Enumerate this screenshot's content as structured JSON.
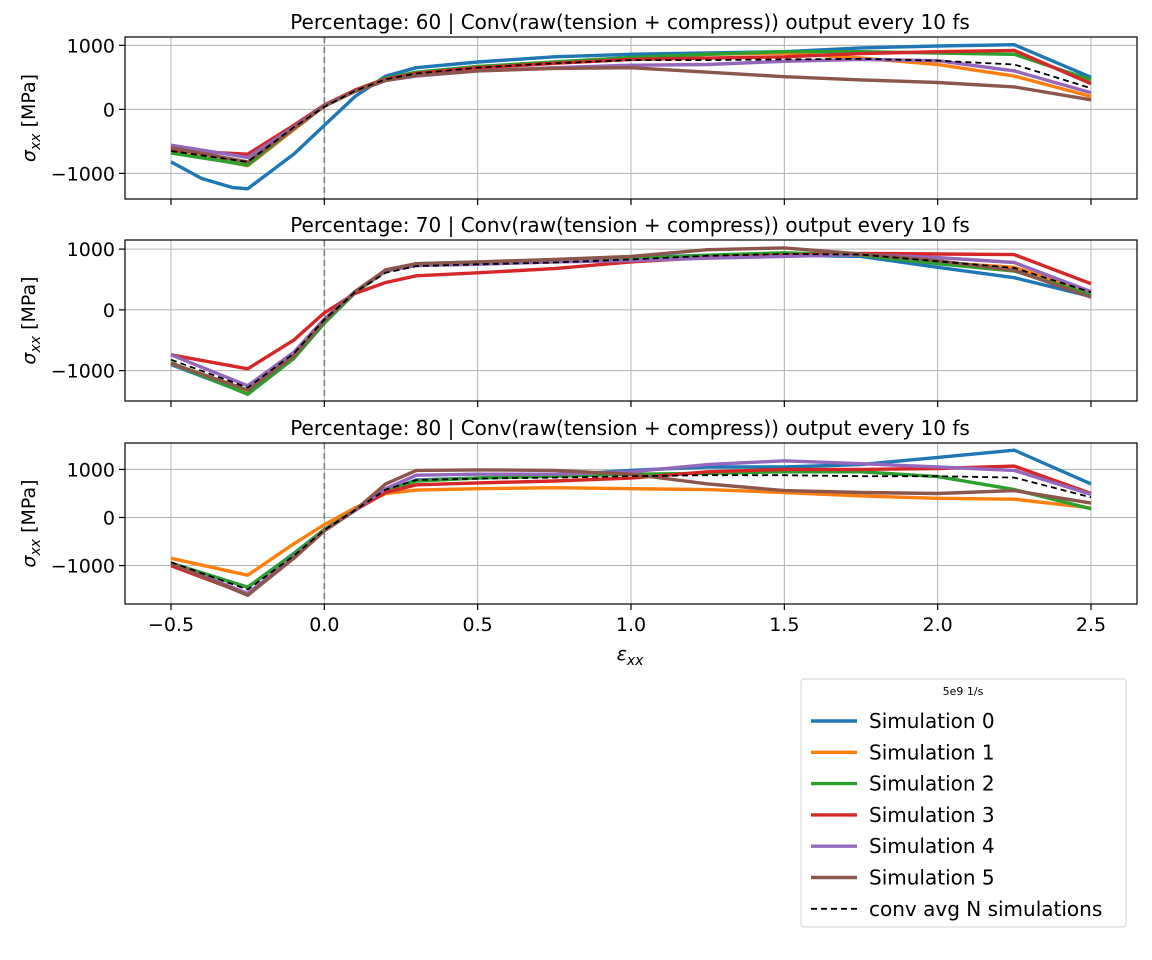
{
  "chart_data": {
    "type": "line",
    "shared_x": {
      "label_symbol": "ε",
      "label_sub": "xx",
      "xlim": [
        -0.65,
        2.65
      ],
      "ticks": [
        -0.5,
        0.0,
        0.5,
        1.0,
        1.5,
        2.0,
        2.5
      ],
      "tick_labels": [
        "−0.5",
        "0.0",
        "0.5",
        "1.0",
        "1.5",
        "2.0",
        "2.5"
      ]
    },
    "vline_x": 0.0,
    "legend": {
      "title": "5e9 1/s",
      "placement": "bottom-right",
      "entries": [
        {
          "label": "Simulation 0",
          "color": "#1f77b4",
          "style": "solid"
        },
        {
          "label": "Simulation 1",
          "color": "#ff7f0e",
          "style": "solid"
        },
        {
          "label": "Simulation 2",
          "color": "#2ca02c",
          "style": "solid"
        },
        {
          "label": "Simulation 3",
          "color": "#d62728",
          "style": "solid"
        },
        {
          "label": "Simulation 4",
          "color": "#9467bd",
          "style": "solid"
        },
        {
          "label": "Simulation 5",
          "color": "#8c564b",
          "style": "solid"
        },
        {
          "label": "conv avg N simulations",
          "color": "#000000",
          "style": "dashed"
        }
      ]
    },
    "panels": [
      {
        "title": "Percentage: 60 | Conv(raw(tension + compress)) output every 10 fs",
        "ylabel_symbol": "σ",
        "ylabel_sub": "xx",
        "ylabel_unit": " [MPa]",
        "ylim": [
          -1400,
          1130
        ],
        "yticks": [
          -1000,
          0,
          1000
        ],
        "ytick_labels": [
          "−1000",
          "0",
          "1000"
        ],
        "series": [
          {
            "x": [
              -0.5,
              -0.4,
              -0.3,
              -0.25,
              -0.1,
              0.0,
              0.1,
              0.2,
              0.3,
              0.5,
              0.75,
              1.0,
              1.25,
              1.5,
              1.75,
              2.0,
              2.25,
              2.5
            ],
            "y": [
              -820,
              -1080,
              -1220,
              -1240,
              -700,
              -250,
              200,
              520,
              650,
              740,
              820,
              860,
              880,
              900,
              960,
              990,
              1010,
              500
            ]
          },
          {
            "x": [
              -0.5,
              -0.25,
              -0.1,
              0.0,
              0.1,
              0.2,
              0.3,
              0.5,
              0.75,
              1.0,
              1.25,
              1.5,
              1.75,
              2.0,
              2.25,
              2.5
            ],
            "y": [
              -650,
              -880,
              -320,
              50,
              300,
              480,
              560,
              640,
              720,
              800,
              860,
              880,
              800,
              700,
              520,
              200
            ]
          },
          {
            "x": [
              -0.5,
              -0.25,
              -0.1,
              0.0,
              0.1,
              0.2,
              0.3,
              0.5,
              0.75,
              1.0,
              1.25,
              1.5,
              1.75,
              2.0,
              2.25,
              2.5
            ],
            "y": [
              -680,
              -870,
              -300,
              50,
              300,
              480,
              580,
              670,
              740,
              810,
              860,
              900,
              900,
              880,
              860,
              460
            ]
          },
          {
            "x": [
              -0.5,
              -0.25,
              -0.1,
              0.0,
              0.1,
              0.2,
              0.3,
              0.5,
              0.75,
              1.0,
              1.25,
              1.5,
              1.75,
              2.0,
              2.25,
              2.5
            ],
            "y": [
              -640,
              -700,
              -250,
              70,
              300,
              470,
              560,
              650,
              720,
              780,
              800,
              820,
              870,
              900,
              920,
              400
            ]
          },
          {
            "x": [
              -0.5,
              -0.25,
              -0.1,
              0.0,
              0.1,
              0.2,
              0.3,
              0.5,
              0.75,
              1.0,
              1.25,
              1.5,
              1.75,
              2.0,
              2.25,
              2.5
            ],
            "y": [
              -560,
              -750,
              -280,
              60,
              280,
              450,
              520,
              600,
              650,
              690,
              700,
              750,
              780,
              760,
              600,
              260
            ]
          },
          {
            "x": [
              -0.5,
              -0.25,
              -0.1,
              0.0,
              0.1,
              0.2,
              0.3,
              0.5,
              0.75,
              1.0,
              1.25,
              1.5,
              1.75,
              2.0,
              2.25,
              2.5
            ],
            "y": [
              -600,
              -820,
              -300,
              50,
              280,
              450,
              530,
              600,
              640,
              650,
              580,
              510,
              460,
              420,
              350,
              150
            ]
          },
          {
            "x": [
              -0.5,
              -0.25,
              -0.1,
              0.0,
              0.1,
              0.2,
              0.3,
              0.5,
              0.75,
              1.0,
              1.25,
              1.5,
              1.75,
              2.0,
              2.25,
              2.5
            ],
            "y": [
              -650,
              -820,
              -280,
              40,
              290,
              470,
              560,
              650,
              720,
              770,
              770,
              780,
              790,
              760,
              700,
              330
            ]
          }
        ]
      },
      {
        "title": "Percentage: 70 | Conv(raw(tension + compress)) output every 10 fs",
        "ylabel_symbol": "σ",
        "ylabel_sub": "xx",
        "ylabel_unit": " [MPa]",
        "ylim": [
          -1500,
          1150
        ],
        "yticks": [
          -1000,
          0,
          1000
        ],
        "ytick_labels": [
          "−1000",
          "0",
          "1000"
        ],
        "series": [
          {
            "x": [
              -0.5,
              -0.25,
              -0.1,
              0.0,
              0.1,
              0.2,
              0.3,
              0.5,
              0.75,
              1.0,
              1.25,
              1.5,
              1.75,
              2.0,
              2.25,
              2.5
            ],
            "y": [
              -900,
              -1380,
              -800,
              -200,
              300,
              650,
              760,
              790,
              800,
              860,
              900,
              900,
              880,
              700,
              530,
              220
            ]
          },
          {
            "x": [
              -0.5,
              -0.25,
              -0.1,
              0.0,
              0.1,
              0.2,
              0.3,
              0.5,
              0.75,
              1.0,
              1.25,
              1.5,
              1.75,
              2.0,
              2.25,
              2.5
            ],
            "y": [
              -880,
              -1360,
              -780,
              -200,
              300,
              640,
              730,
              760,
              790,
              840,
              880,
              920,
              900,
              780,
              700,
              300
            ]
          },
          {
            "x": [
              -0.5,
              -0.25,
              -0.1,
              0.0,
              0.1,
              0.2,
              0.3,
              0.5,
              0.75,
              1.0,
              1.25,
              1.5,
              1.75,
              2.0,
              2.25,
              2.5
            ],
            "y": [
              -870,
              -1390,
              -800,
              -220,
              280,
              640,
              740,
              770,
              800,
              840,
              900,
              940,
              900,
              760,
              640,
              250
            ]
          },
          {
            "x": [
              -0.5,
              -0.25,
              -0.1,
              0.0,
              0.1,
              0.2,
              0.3,
              0.5,
              0.75,
              1.0,
              1.25,
              1.5,
              1.75,
              2.0,
              2.25,
              2.5
            ],
            "y": [
              -740,
              -970,
              -500,
              -50,
              270,
              450,
              560,
              610,
              680,
              790,
              860,
              900,
              930,
              920,
              910,
              430
            ]
          },
          {
            "x": [
              -0.5,
              -0.25,
              -0.1,
              0.0,
              0.1,
              0.2,
              0.3,
              0.5,
              0.75,
              1.0,
              1.25,
              1.5,
              1.75,
              2.0,
              2.25,
              2.5
            ],
            "y": [
              -740,
              -1250,
              -700,
              -150,
              300,
              640,
              730,
              750,
              790,
              810,
              850,
              880,
              910,
              860,
              780,
              300
            ]
          },
          {
            "x": [
              -0.5,
              -0.25,
              -0.1,
              0.0,
              0.1,
              0.2,
              0.3,
              0.5,
              0.75,
              1.0,
              1.25,
              1.5,
              1.75,
              2.0,
              2.25,
              2.5
            ],
            "y": [
              -880,
              -1320,
              -760,
              -180,
              300,
              660,
              760,
              790,
              830,
              880,
              990,
              1020,
              920,
              810,
              650,
              210
            ]
          },
          {
            "x": [
              -0.5,
              -0.25,
              -0.1,
              0.0,
              0.1,
              0.2,
              0.3,
              0.5,
              0.75,
              1.0,
              1.25,
              1.5,
              1.75,
              2.0,
              2.25,
              2.5
            ],
            "y": [
              -820,
              -1280,
              -720,
              -160,
              290,
              610,
              720,
              750,
              780,
              830,
              890,
              920,
              910,
              800,
              690,
              290
            ]
          }
        ]
      },
      {
        "title": "Percentage: 80 | Conv(raw(tension + compress)) output every 10 fs",
        "ylabel_symbol": "σ",
        "ylabel_sub": "xx",
        "ylabel_unit": " [MPa]",
        "ylim": [
          -1800,
          1550
        ],
        "yticks": [
          -1000,
          0,
          1000
        ],
        "ytick_labels": [
          "−1000",
          "0",
          "1000"
        ],
        "series": [
          {
            "x": [
              -0.5,
              -0.25,
              -0.1,
              0.0,
              0.1,
              0.2,
              0.3,
              0.5,
              0.75,
              1.0,
              1.25,
              1.5,
              1.75,
              2.0,
              2.25,
              2.5
            ],
            "y": [
              -950,
              -1450,
              -750,
              -250,
              150,
              550,
              780,
              820,
              880,
              980,
              1050,
              1050,
              1100,
              1250,
              1400,
              700
            ]
          },
          {
            "x": [
              -0.5,
              -0.25,
              -0.1,
              0.0,
              0.1,
              0.2,
              0.3,
              0.5,
              0.75,
              1.0,
              1.25,
              1.5,
              1.75,
              2.0,
              2.25,
              2.5
            ],
            "y": [
              -850,
              -1200,
              -550,
              -150,
              200,
              500,
              570,
              600,
              620,
              600,
              580,
              520,
              450,
              400,
              380,
              200
            ]
          },
          {
            "x": [
              -0.5,
              -0.25,
              -0.1,
              0.0,
              0.1,
              0.2,
              0.3,
              0.5,
              0.75,
              1.0,
              1.25,
              1.5,
              1.75,
              2.0,
              2.25,
              2.5
            ],
            "y": [
              -950,
              -1450,
              -760,
              -250,
              150,
              550,
              760,
              820,
              860,
              900,
              920,
              950,
              950,
              850,
              580,
              180
            ]
          },
          {
            "x": [
              -0.5,
              -0.25,
              -0.1,
              0.0,
              0.1,
              0.2,
              0.3,
              0.5,
              0.75,
              1.0,
              1.25,
              1.5,
              1.75,
              2.0,
              2.25,
              2.5
            ],
            "y": [
              -1000,
              -1600,
              -850,
              -280,
              150,
              520,
              680,
              720,
              760,
              820,
              950,
              1000,
              1000,
              1020,
              1070,
              500
            ]
          },
          {
            "x": [
              -0.5,
              -0.25,
              -0.1,
              0.0,
              0.1,
              0.2,
              0.3,
              0.5,
              0.75,
              1.0,
              1.25,
              1.5,
              1.75,
              2.0,
              2.25,
              2.5
            ],
            "y": [
              -950,
              -1580,
              -820,
              -270,
              150,
              600,
              880,
              900,
              900,
              950,
              1100,
              1180,
              1120,
              1050,
              980,
              480
            ]
          },
          {
            "x": [
              -0.5,
              -0.25,
              -0.1,
              0.0,
              0.1,
              0.2,
              0.3,
              0.5,
              0.75,
              1.0,
              1.25,
              1.5,
              1.75,
              2.0,
              2.25,
              2.5
            ],
            "y": [
              -950,
              -1620,
              -850,
              -280,
              150,
              700,
              980,
              990,
              980,
              900,
              700,
              560,
              520,
              500,
              560,
              300
            ]
          },
          {
            "x": [
              -0.5,
              -0.25,
              -0.1,
              0.0,
              0.1,
              0.2,
              0.3,
              0.5,
              0.75,
              1.0,
              1.25,
              1.5,
              1.75,
              2.0,
              2.25,
              2.5
            ],
            "y": [
              -930,
              -1500,
              -800,
              -260,
              150,
              580,
              780,
              810,
              830,
              860,
              880,
              880,
              860,
              860,
              830,
              420
            ]
          }
        ]
      }
    ]
  }
}
